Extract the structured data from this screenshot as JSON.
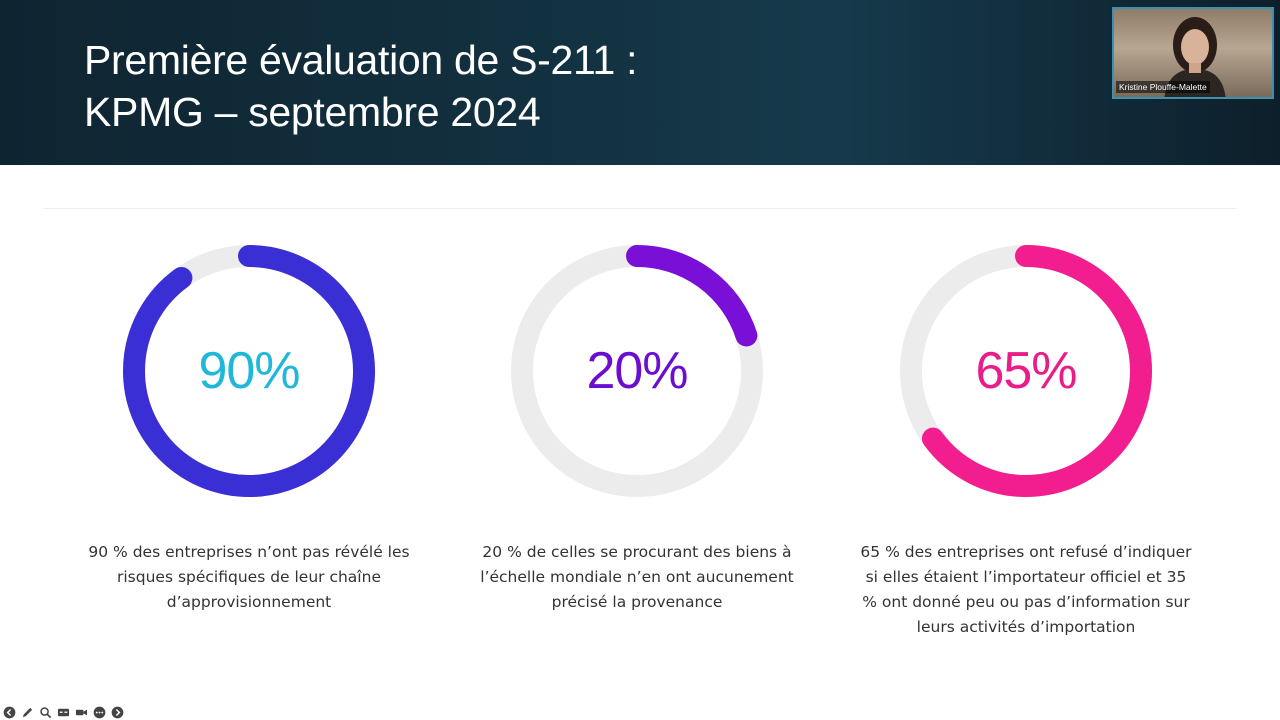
{
  "slide": {
    "title_line_1": "Première évaluation de S-211 :",
    "title_line_2": "KPMG – septembre 2024"
  },
  "stats": [
    {
      "label": "90%",
      "value": 90,
      "color": "#3a2fd4",
      "text_color": "#1fb8d9",
      "caption": "90 % des entreprises n’ont pas révélé les risques spécifiques de leur chaîne d’approvisionnement"
    },
    {
      "label": "20%",
      "value": 20,
      "color": "#7a0fd8",
      "text_color": "#6a0ed0",
      "caption": "20 % de celles se procurant des biens à l’échelle mondiale n’en ont aucunement précisé la provenance"
    },
    {
      "label": "65%",
      "value": 65,
      "color": "#f21d8f",
      "text_color": "#e81d8a",
      "caption": "65 % des entreprises ont refusé d’indiquer si elles étaient l’importateur officiel et 35 % ont donné peu ou pas d’information sur leurs activités d’importation"
    }
  ],
  "webcam": {
    "participant_name": "Kristine Plouffe-Malette",
    "border_color": "#3f8fb0"
  },
  "toolbar": {
    "icons": [
      "previous-icon",
      "pen-icon",
      "zoom-icon",
      "subtitles-icon",
      "camera-icon",
      "more-icon",
      "next-icon"
    ]
  },
  "colors": {
    "header_bg": "#12303f",
    "ring_track": "#ececec"
  }
}
